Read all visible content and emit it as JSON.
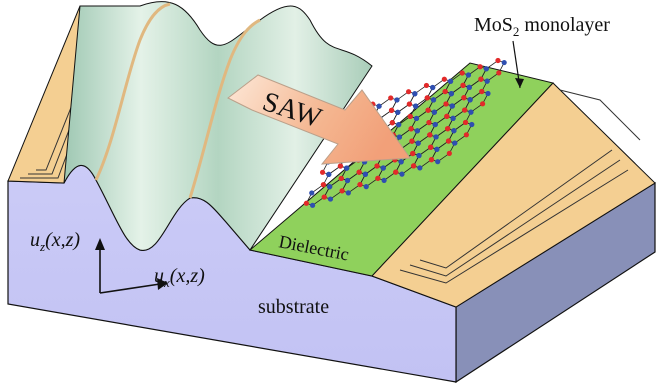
{
  "labels": {
    "layer": "MoS",
    "layer_sub": "2",
    "layer_rest": " monolayer",
    "saw": "SAW",
    "dielectric": "Dielectric",
    "substrate": "substrate",
    "uz": "u",
    "uz_sub": "z",
    "uz_args": "(x,z)",
    "ux": "u",
    "ux_sub": "x",
    "ux_args": "(x,z)"
  },
  "colors": {
    "substrate_top": "#cfcff7",
    "substrate_front": "#c5c5f5",
    "substrate_side": "#8890b8",
    "electrode": "#f4cf92",
    "electrode_edge": "#d7a55e",
    "dielectric": "#8fd15c",
    "wave_light": "#d9ecdf",
    "wave_mid": "#b7d8c4",
    "wave_edge": "#e0b880",
    "saw_arrow": "#f2b58f",
    "atom_red": "#e22a2a",
    "atom_blue": "#2f4fb0",
    "bond": "#222222"
  }
}
